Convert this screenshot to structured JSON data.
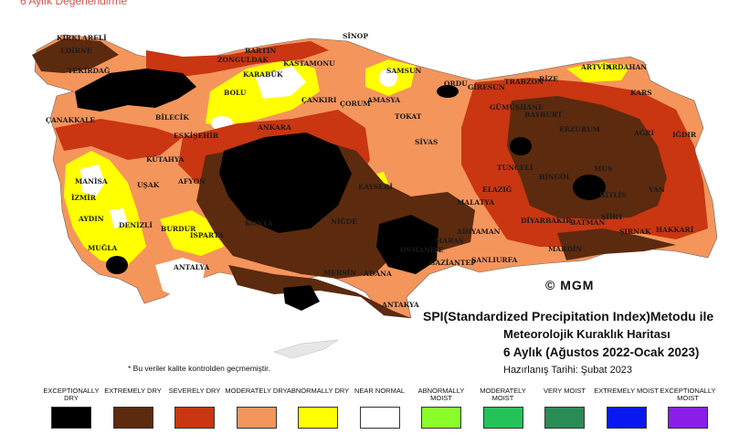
{
  "header": {
    "caption": "6 Aylık Değerlendirme"
  },
  "map": {
    "cities": [
      {
        "key": "kirklareli",
        "name": "KIRKLARELİ"
      },
      {
        "key": "edirne",
        "name": "EDİRNE"
      },
      {
        "key": "tekirdag",
        "name": "TEKİRDAĞ"
      },
      {
        "key": "canakkale",
        "name": "ÇANAKKALE"
      },
      {
        "key": "bartin",
        "name": "BARTIN"
      },
      {
        "key": "zonguldak",
        "name": "ZONGULDAK"
      },
      {
        "key": "kastamonu",
        "name": "KASTAMONU"
      },
      {
        "key": "sinop",
        "name": "SİNOP"
      },
      {
        "key": "karabuk",
        "name": "KARABÜK"
      },
      {
        "key": "bolu",
        "name": "BOLU"
      },
      {
        "key": "samsun",
        "name": "SAMSUN"
      },
      {
        "key": "amasya",
        "name": "AMASYA"
      },
      {
        "key": "corum",
        "name": "ÇORUM"
      },
      {
        "key": "cankiri",
        "name": "ÇANKIRI"
      },
      {
        "key": "ordu",
        "name": "ORDU"
      },
      {
        "key": "giresun",
        "name": "GİRESUN"
      },
      {
        "key": "trabzon",
        "name": "TRABZON"
      },
      {
        "key": "rize",
        "name": "RİZE"
      },
      {
        "key": "artvin",
        "name": "ARTVİN"
      },
      {
        "key": "ardahan",
        "name": "ARDAHAN"
      },
      {
        "key": "kars",
        "name": "KARS"
      },
      {
        "key": "gumushane",
        "name": "GÜMÜŞHANE"
      },
      {
        "key": "bayburt",
        "name": "BAYBURT"
      },
      {
        "key": "erzurum",
        "name": "ERZURUM"
      },
      {
        "key": "agri",
        "name": "AĞRI"
      },
      {
        "key": "igdir",
        "name": "IĞDIR"
      },
      {
        "key": "tokat",
        "name": "TOKAT"
      },
      {
        "key": "sivas",
        "name": "SİVAS"
      },
      {
        "key": "ankara",
        "name": "ANKARA"
      },
      {
        "key": "bilecik",
        "name": "BİLECİK"
      },
      {
        "key": "eskisehir",
        "name": "ESKİŞEHİR"
      },
      {
        "key": "kutahya",
        "name": "KÜTAHYA"
      },
      {
        "key": "usak",
        "name": "UŞAK"
      },
      {
        "key": "afyon",
        "name": "AFYON"
      },
      {
        "key": "manisa",
        "name": "MANİSA"
      },
      {
        "key": "izmir",
        "name": "İZMİR"
      },
      {
        "key": "aydin",
        "name": "AYDIN"
      },
      {
        "key": "denizli",
        "name": "DENİZLİ"
      },
      {
        "key": "mugla",
        "name": "MUĞLA"
      },
      {
        "key": "burdur",
        "name": "BURDUR"
      },
      {
        "key": "isparta",
        "name": "ISPARTA"
      },
      {
        "key": "antalya",
        "name": "ANTALYA"
      },
      {
        "key": "konya",
        "name": "KONYA"
      },
      {
        "key": "nigde",
        "name": "NİĞDE"
      },
      {
        "key": "kayseri",
        "name": "KAYSERİ"
      },
      {
        "key": "mersin",
        "name": "MERSİN"
      },
      {
        "key": "adana",
        "name": "ADANA"
      },
      {
        "key": "antakya",
        "name": "ANTAKYA"
      },
      {
        "key": "osmaniye",
        "name": "OSMANİYE"
      },
      {
        "key": "gaziantep",
        "name": "GAZİANTEP"
      },
      {
        "key": "maras",
        "name": "MARAŞ"
      },
      {
        "key": "malatya",
        "name": "MALATYA"
      },
      {
        "key": "adiyaman",
        "name": "ADIYAMAN"
      },
      {
        "key": "sanliurfa",
        "name": "ŞANLIURFA"
      },
      {
        "key": "tunceli",
        "name": "TUNCELİ"
      },
      {
        "key": "elazig",
        "name": "ELAZIĞ"
      },
      {
        "key": "bingol",
        "name": "BİNGÖL"
      },
      {
        "key": "mus",
        "name": "MUŞ"
      },
      {
        "key": "bitlis",
        "name": "BİTLİS"
      },
      {
        "key": "van",
        "name": "VAN"
      },
      {
        "key": "diyarbakir",
        "name": "DİYARBAKIR"
      },
      {
        "key": "batman",
        "name": "BATMAN"
      },
      {
        "key": "siirt",
        "name": "SİİRT"
      },
      {
        "key": "sirnak",
        "name": "ŞIRNAK"
      },
      {
        "key": "hakkari",
        "name": "HAKKARİ"
      },
      {
        "key": "mardin",
        "name": "MARDİN"
      }
    ]
  },
  "logo": {
    "text": "© MGM"
  },
  "title": {
    "line1": "SPI(Standardized Precipitation Index)Metodu ile",
    "line2": "Meteorolojik Kuraklık Haritası",
    "line3": "6 Aylık (Ağustos 2022-Ocak 2023)",
    "line4": "Hazırlanış Tarihi: Şubat 2023"
  },
  "note": "* Bu veriler kalite kontrolden geçmemiştir.",
  "legend": [
    {
      "label": "EXCEPTIONALLY DRY",
      "color": "#000000"
    },
    {
      "label": "EXTREMELY DRY",
      "color": "#5c2a0e"
    },
    {
      "label": "SEVERELY DRY",
      "color": "#c93611"
    },
    {
      "label": "MODERATELY DRY",
      "color": "#f4955c"
    },
    {
      "label": "ABNORMALLY DRY",
      "color": "#ffff00"
    },
    {
      "label": "NEAR NORMAL",
      "color": "#ffffff"
    },
    {
      "label": "ABNORMALLY MOIST",
      "color": "#8aff2c"
    },
    {
      "label": "MODERATELY MOIST",
      "color": "#25c25a"
    },
    {
      "label": "VERY MOIST",
      "color": "#2a8c55"
    },
    {
      "label": "EXTREMELY MOIST",
      "color": "#0a18f0"
    },
    {
      "label": "EXCEPTIONALLY MOIST",
      "color": "#8a1ee8"
    }
  ]
}
